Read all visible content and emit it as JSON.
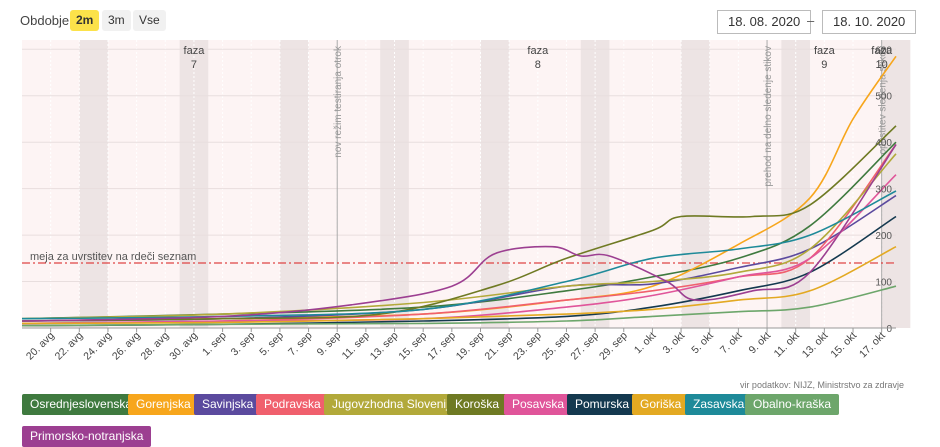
{
  "header": {
    "period_label": "Obdobje",
    "ranges": [
      {
        "label": "2m",
        "active": true
      },
      {
        "label": "3m",
        "active": false
      },
      {
        "label": "Vse",
        "active": false
      }
    ],
    "date_from": "18. 08. 2020",
    "date_sep": "–",
    "date_to": "18. 10. 2020"
  },
  "source": "vir podatkov: NIJZ, Ministrstvo za zdravje",
  "chart_data": {
    "type": "line",
    "title": "",
    "xlabel": "",
    "ylabel": "",
    "ylim": [
      0,
      620
    ],
    "y_ticks": [
      0,
      100,
      200,
      300,
      400,
      500,
      600
    ],
    "x_ticks": [
      "20. avg",
      "22. avg",
      "24. avg",
      "26. avg",
      "28. avg",
      "30. avg",
      "1. sep",
      "3. sep",
      "5. sep",
      "7. sep",
      "9. sep",
      "11. sep",
      "13. sep",
      "15. sep",
      "17. sep",
      "19. sep",
      "21. sep",
      "23. sep",
      "25. sep",
      "27. sep",
      "29. sep",
      "1. okt",
      "3. okt",
      "5. okt",
      "7. okt",
      "9. okt",
      "11. okt",
      "13. okt",
      "15. okt",
      "17. okt"
    ],
    "threshold": {
      "value": 140,
      "label": "meja za uvrstitev na rdeči seznam",
      "color": "#e04545"
    },
    "phases": [
      {
        "label": "faza",
        "number": "7",
        "x": "30. avg"
      },
      {
        "label": "faza",
        "number": "8",
        "x": "23. sep"
      },
      {
        "label": "faza",
        "number": "9",
        "x": "13. okt"
      },
      {
        "label": "faza",
        "number": "10",
        "x": "17. okt"
      }
    ],
    "events": [
      {
        "label": "nov režim testiranja otrok",
        "x": "9. sep"
      },
      {
        "label": "prehod na delno sledenje stikov",
        "x": "9. okt"
      },
      {
        "label": "opustitev sledenja stikov",
        "x": "17. okt"
      }
    ],
    "weekend_shading": true,
    "series": [
      {
        "name": "Osrednjeslovenska",
        "color": "#3f7a3f",
        "x": [
          "18. avg",
          "1. sep",
          "15. sep",
          "25. sep",
          "1. okt",
          "7. okt",
          "12. okt",
          "18. okt"
        ],
        "values": [
          20,
          30,
          45,
          80,
          110,
          150,
          220,
          400
        ]
      },
      {
        "name": "Gorenjska",
        "color": "#f7a61c",
        "x": [
          "18. avg",
          "1. sep",
          "15. sep",
          "25. sep",
          "1. okt",
          "7. okt",
          "12. okt",
          "15. okt",
          "18. okt"
        ],
        "values": [
          15,
          20,
          30,
          60,
          90,
          180,
          280,
          450,
          585
        ]
      },
      {
        "name": "Savinjska",
        "color": "#5b4a9e",
        "x": [
          "18. avg",
          "1. sep",
          "15. sep",
          "25. sep",
          "1. okt",
          "7. okt",
          "12. okt",
          "18. okt"
        ],
        "values": [
          15,
          20,
          40,
          90,
          95,
          130,
          170,
          285
        ]
      },
      {
        "name": "Podravska",
        "color": "#f0606d",
        "x": [
          "18. avg",
          "1. sep",
          "15. sep",
          "25. sep",
          "1. okt",
          "7. okt",
          "12. okt",
          "18. okt"
        ],
        "values": [
          10,
          15,
          30,
          60,
          80,
          110,
          150,
          395
        ]
      },
      {
        "name": "Jugovzhodna Slovenija",
        "color": "#b2a93a",
        "x": [
          "18. avg",
          "1. sep",
          "15. sep",
          "25. sep",
          "1. okt",
          "7. okt",
          "12. okt",
          "18. okt"
        ],
        "values": [
          20,
          30,
          55,
          90,
          100,
          120,
          170,
          375
        ]
      },
      {
        "name": "Koroška",
        "color": "#6f7a23",
        "x": [
          "18. avg",
          "1. sep",
          "12. sep",
          "20. sep",
          "25. sep",
          "1. okt",
          "3. okt",
          "8. okt",
          "12. okt",
          "18. okt"
        ],
        "values": [
          15,
          20,
          30,
          90,
          150,
          210,
          240,
          240,
          265,
          435
        ]
      },
      {
        "name": "Posavska",
        "color": "#e0559a",
        "x": [
          "18. avg",
          "1. sep",
          "15. sep",
          "25. sep",
          "1. okt",
          "7. okt",
          "12. okt",
          "18. okt"
        ],
        "values": [
          10,
          15,
          20,
          45,
          70,
          110,
          150,
          330
        ]
      },
      {
        "name": "Pomurska",
        "color": "#14394f",
        "x": [
          "18. avg",
          "1. sep",
          "15. sep",
          "25. sep",
          "1. okt",
          "7. okt",
          "12. okt",
          "18. okt"
        ],
        "values": [
          5,
          8,
          15,
          25,
          45,
          80,
          120,
          240
        ]
      },
      {
        "name": "Goriška",
        "color": "#e3a922",
        "x": [
          "18. avg",
          "1. sep",
          "15. sep",
          "25. sep",
          "1. okt",
          "7. okt",
          "12. okt",
          "18. okt"
        ],
        "values": [
          10,
          12,
          20,
          30,
          40,
          60,
          80,
          175
        ]
      },
      {
        "name": "Zasavska",
        "color": "#1e8a99",
        "x": [
          "18. avg",
          "1. sep",
          "15. sep",
          "25. sep",
          "1. okt",
          "7. okt",
          "12. okt",
          "18. okt"
        ],
        "values": [
          20,
          25,
          40,
          100,
          150,
          170,
          200,
          295
        ]
      },
      {
        "name": "Obalno-kraška",
        "color": "#6da66b",
        "x": [
          "18. avg",
          "1. sep",
          "15. sep",
          "25. sep",
          "1. okt",
          "7. okt",
          "12. okt",
          "18. okt"
        ],
        "values": [
          5,
          8,
          10,
          15,
          25,
          35,
          45,
          90
        ]
      },
      {
        "name": "Primorsko-notranjska",
        "color": "#9c3f91",
        "x": [
          "18. avg",
          "1. sep",
          "10. sep",
          "17. sep",
          "20. sep",
          "24. sep",
          "26. sep",
          "28. sep",
          "2. okt",
          "4. okt",
          "8. okt",
          "12. okt",
          "18. okt"
        ],
        "values": [
          15,
          25,
          50,
          90,
          160,
          175,
          155,
          155,
          100,
          60,
          80,
          120,
          395
        ]
      }
    ]
  }
}
